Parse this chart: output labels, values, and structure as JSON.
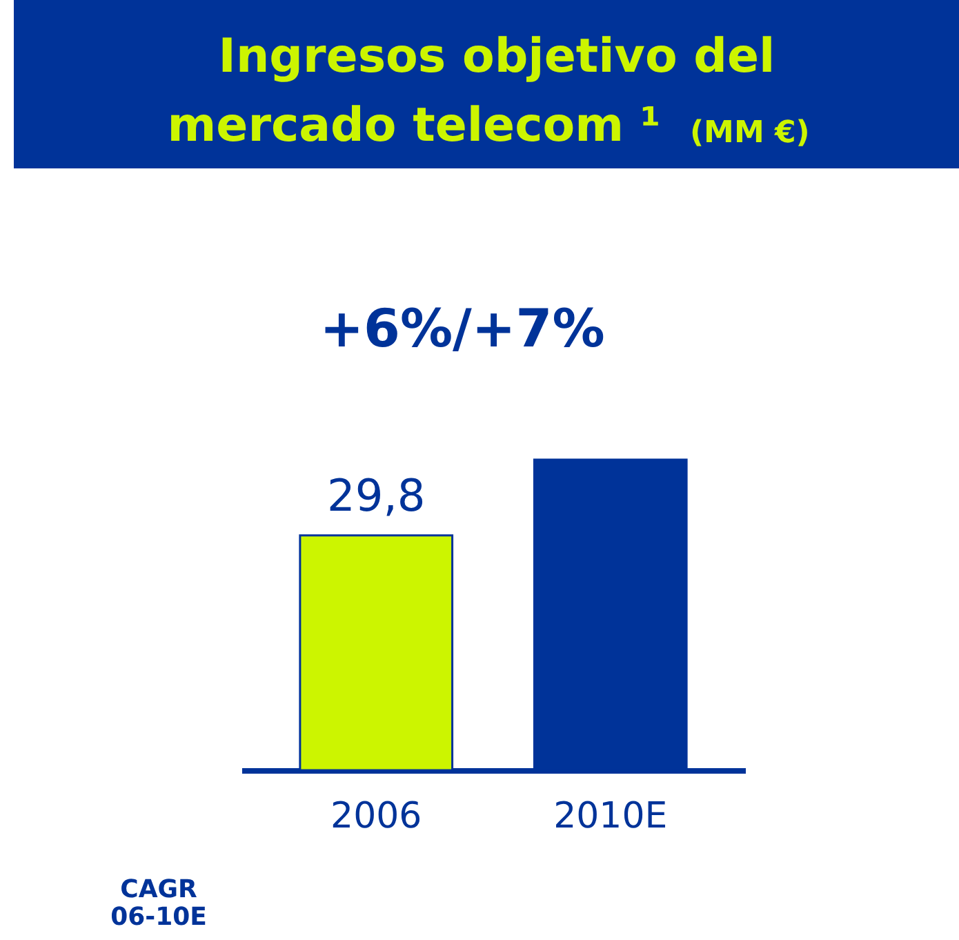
{
  "chart_data": {
    "type": "bar",
    "title": "Ingresos objetivo del mercado telecom ¹",
    "subtitle": "(MM €)",
    "categories": [
      "2006",
      "2010E"
    ],
    "values": [
      29.8,
      39.4
    ],
    "colors": [
      "#ccf500",
      "#003399"
    ],
    "value_labels": [
      "29,8",
      null
    ],
    "annotations": [
      "+6%/+7%",
      "CAGR 06-10E"
    ]
  }
}
